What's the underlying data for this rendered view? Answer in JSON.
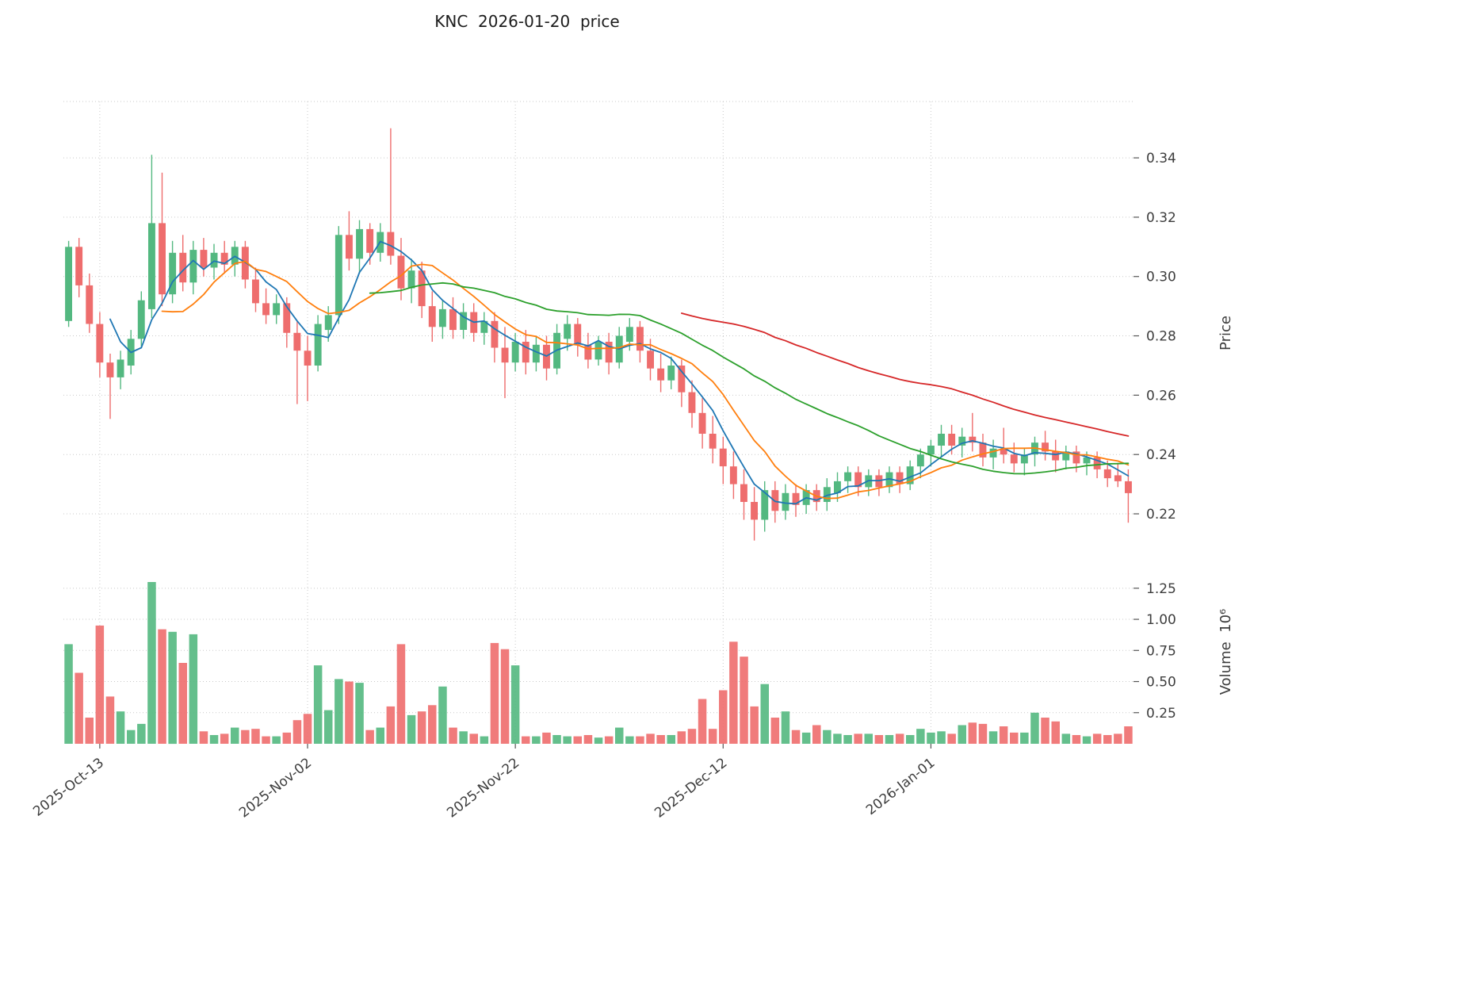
{
  "title": "KNC  2026-01-20  price",
  "price_axis": {
    "label": "Price",
    "ticks": [
      0.22,
      0.24,
      0.26,
      0.28,
      0.3,
      0.32,
      0.34
    ],
    "range": [
      0.2045,
      0.359
    ]
  },
  "volume_axis": {
    "label": "Volume  10⁶",
    "ticks": [
      0.25,
      0.5,
      0.75,
      1.0,
      1.25
    ],
    "range": [
      0,
      1.44
    ]
  },
  "x_axis": {
    "tick_labels": [
      "2025-Oct-13",
      "2025-Nov-02",
      "2025-Nov-22",
      "2025-Dec-12",
      "2026-Jan-01"
    ],
    "tick_indices": [
      3,
      23,
      43,
      63,
      83
    ]
  },
  "style": {
    "up_color": "#53b880",
    "down_color": "#ee6d6d",
    "grid_color": "#c9c9c9",
    "tick_color": "#555555",
    "text_color": "#3d3d3d",
    "background": "#ffffff"
  },
  "moving_averages": [
    {
      "name": "ma5",
      "period": 5,
      "color": "#1f77b4"
    },
    {
      "name": "ma10",
      "period": 10,
      "color": "#ff7f0e"
    },
    {
      "name": "ma30",
      "period": 30,
      "color": "#2ca02c"
    },
    {
      "name": "ma60",
      "period": 60,
      "color": "#d62728"
    }
  ],
  "chart_data": {
    "type": "candlestick",
    "symbol": "KNC",
    "as_of": "2026-01-20",
    "legend_position": "none",
    "grid": "dotted",
    "dates": [
      "2025-10-10",
      "2025-10-11",
      "2025-10-12",
      "2025-10-13",
      "2025-10-14",
      "2025-10-15",
      "2025-10-16",
      "2025-10-17",
      "2025-10-18",
      "2025-10-19",
      "2025-10-20",
      "2025-10-21",
      "2025-10-22",
      "2025-10-23",
      "2025-10-24",
      "2025-10-25",
      "2025-10-26",
      "2025-10-27",
      "2025-10-28",
      "2025-10-29",
      "2025-10-30",
      "2025-10-31",
      "2025-11-01",
      "2025-11-02",
      "2025-11-03",
      "2025-11-04",
      "2025-11-05",
      "2025-11-06",
      "2025-11-07",
      "2025-11-08",
      "2025-11-09",
      "2025-11-10",
      "2025-11-11",
      "2025-11-12",
      "2025-11-13",
      "2025-11-14",
      "2025-11-15",
      "2025-11-16",
      "2025-11-17",
      "2025-11-18",
      "2025-11-19",
      "2025-11-20",
      "2025-11-21",
      "2025-11-22",
      "2025-11-23",
      "2025-11-24",
      "2025-11-25",
      "2025-11-26",
      "2025-11-27",
      "2025-11-28",
      "2025-11-29",
      "2025-11-30",
      "2025-12-01",
      "2025-12-02",
      "2025-12-03",
      "2025-12-04",
      "2025-12-05",
      "2025-12-06",
      "2025-12-07",
      "2025-12-08",
      "2025-12-09",
      "2025-12-10",
      "2025-12-11",
      "2025-12-12",
      "2025-12-13",
      "2025-12-14",
      "2025-12-15",
      "2025-12-16",
      "2025-12-17",
      "2025-12-18",
      "2025-12-19",
      "2025-12-20",
      "2025-12-21",
      "2025-12-22",
      "2025-12-23",
      "2025-12-24",
      "2025-12-25",
      "2025-12-26",
      "2025-12-27",
      "2025-12-28",
      "2025-12-29",
      "2025-12-30",
      "2025-12-31",
      "2026-01-01",
      "2026-01-02",
      "2026-01-03",
      "2026-01-04",
      "2026-01-05",
      "2026-01-06",
      "2026-01-07",
      "2026-01-08",
      "2026-01-09",
      "2026-01-10",
      "2026-01-11",
      "2026-01-12",
      "2026-01-13",
      "2026-01-14",
      "2026-01-15",
      "2026-01-16",
      "2026-01-17",
      "2026-01-18",
      "2026-01-19",
      "2026-01-20"
    ],
    "open": [
      0.285,
      0.31,
      0.297,
      0.284,
      0.271,
      0.266,
      0.27,
      0.279,
      0.289,
      0.318,
      0.294,
      0.308,
      0.298,
      0.309,
      0.303,
      0.308,
      0.304,
      0.31,
      0.299,
      0.291,
      0.287,
      0.291,
      0.281,
      0.275,
      0.27,
      0.282,
      0.287,
      0.314,
      0.306,
      0.316,
      0.308,
      0.315,
      0.307,
      0.296,
      0.302,
      0.29,
      0.283,
      0.289,
      0.282,
      0.288,
      0.281,
      0.285,
      0.276,
      0.271,
      0.278,
      0.271,
      0.277,
      0.269,
      0.279,
      0.284,
      0.277,
      0.272,
      0.278,
      0.271,
      0.278,
      0.283,
      0.275,
      0.269,
      0.265,
      0.27,
      0.261,
      0.254,
      0.247,
      0.242,
      0.236,
      0.23,
      0.224,
      0.218,
      0.228,
      0.221,
      0.227,
      0.223,
      0.228,
      0.224,
      0.227,
      0.231,
      0.234,
      0.229,
      0.233,
      0.229,
      0.234,
      0.23,
      0.236,
      0.24,
      0.243,
      0.247,
      0.243,
      0.246,
      0.244,
      0.239,
      0.242,
      0.24,
      0.237,
      0.24,
      0.244,
      0.241,
      0.238,
      0.241,
      0.237,
      0.239,
      0.235,
      0.233,
      0.231
    ],
    "high": [
      0.312,
      0.313,
      0.301,
      0.288,
      0.274,
      0.275,
      0.282,
      0.295,
      0.341,
      0.335,
      0.312,
      0.314,
      0.312,
      0.313,
      0.311,
      0.312,
      0.312,
      0.312,
      0.303,
      0.296,
      0.294,
      0.293,
      0.285,
      0.28,
      0.287,
      0.29,
      0.317,
      0.322,
      0.319,
      0.318,
      0.318,
      0.35,
      0.313,
      0.306,
      0.305,
      0.295,
      0.292,
      0.293,
      0.291,
      0.291,
      0.288,
      0.288,
      0.283,
      0.281,
      0.282,
      0.28,
      0.28,
      0.284,
      0.287,
      0.286,
      0.281,
      0.28,
      0.281,
      0.283,
      0.286,
      0.285,
      0.279,
      0.274,
      0.273,
      0.272,
      0.265,
      0.259,
      0.253,
      0.246,
      0.241,
      0.235,
      0.229,
      0.231,
      0.231,
      0.23,
      0.23,
      0.23,
      0.23,
      0.232,
      0.234,
      0.236,
      0.236,
      0.235,
      0.235,
      0.236,
      0.236,
      0.238,
      0.242,
      0.245,
      0.25,
      0.25,
      0.249,
      0.254,
      0.247,
      0.245,
      0.249,
      0.244,
      0.242,
      0.246,
      0.248,
      0.245,
      0.243,
      0.243,
      0.241,
      0.241,
      0.238,
      0.237,
      0.235
    ],
    "low": [
      0.283,
      0.293,
      0.281,
      0.266,
      0.252,
      0.262,
      0.267,
      0.276,
      0.286,
      0.29,
      0.291,
      0.295,
      0.294,
      0.3,
      0.299,
      0.301,
      0.3,
      0.296,
      0.288,
      0.284,
      0.284,
      0.276,
      0.257,
      0.258,
      0.268,
      0.278,
      0.284,
      0.302,
      0.301,
      0.304,
      0.305,
      0.304,
      0.292,
      0.291,
      0.286,
      0.278,
      0.279,
      0.279,
      0.279,
      0.278,
      0.277,
      0.271,
      0.259,
      0.268,
      0.267,
      0.268,
      0.265,
      0.267,
      0.275,
      0.273,
      0.269,
      0.27,
      0.267,
      0.269,
      0.275,
      0.271,
      0.265,
      0.261,
      0.262,
      0.256,
      0.249,
      0.242,
      0.237,
      0.23,
      0.225,
      0.218,
      0.211,
      0.214,
      0.217,
      0.218,
      0.219,
      0.22,
      0.221,
      0.221,
      0.224,
      0.227,
      0.226,
      0.226,
      0.226,
      0.227,
      0.227,
      0.228,
      0.232,
      0.236,
      0.239,
      0.24,
      0.239,
      0.241,
      0.236,
      0.235,
      0.237,
      0.234,
      0.233,
      0.236,
      0.238,
      0.234,
      0.235,
      0.234,
      0.233,
      0.232,
      0.229,
      0.229,
      0.217
    ],
    "close": [
      0.31,
      0.297,
      0.284,
      0.271,
      0.266,
      0.272,
      0.279,
      0.292,
      0.318,
      0.294,
      0.308,
      0.298,
      0.309,
      0.303,
      0.308,
      0.304,
      0.31,
      0.299,
      0.291,
      0.287,
      0.291,
      0.281,
      0.275,
      0.27,
      0.284,
      0.287,
      0.314,
      0.306,
      0.316,
      0.308,
      0.315,
      0.307,
      0.296,
      0.302,
      0.29,
      0.283,
      0.289,
      0.282,
      0.288,
      0.281,
      0.285,
      0.276,
      0.271,
      0.278,
      0.271,
      0.277,
      0.269,
      0.281,
      0.284,
      0.277,
      0.272,
      0.278,
      0.271,
      0.28,
      0.283,
      0.275,
      0.269,
      0.265,
      0.27,
      0.261,
      0.254,
      0.247,
      0.242,
      0.236,
      0.23,
      0.224,
      0.218,
      0.228,
      0.221,
      0.227,
      0.223,
      0.228,
      0.224,
      0.229,
      0.231,
      0.234,
      0.229,
      0.233,
      0.229,
      0.234,
      0.23,
      0.236,
      0.24,
      0.243,
      0.247,
      0.243,
      0.246,
      0.244,
      0.239,
      0.242,
      0.24,
      0.237,
      0.24,
      0.244,
      0.241,
      0.238,
      0.241,
      0.237,
      0.239,
      0.235,
      0.232,
      0.231,
      0.227
    ],
    "volume_millions": [
      0.8,
      0.57,
      0.21,
      0.95,
      0.38,
      0.26,
      0.11,
      0.16,
      1.3,
      0.92,
      0.9,
      0.65,
      0.88,
      0.1,
      0.07,
      0.08,
      0.13,
      0.11,
      0.12,
      0.06,
      0.06,
      0.09,
      0.19,
      0.24,
      0.63,
      0.27,
      0.52,
      0.5,
      0.49,
      0.11,
      0.13,
      0.3,
      0.8,
      0.23,
      0.26,
      0.31,
      0.46,
      0.13,
      0.1,
      0.08,
      0.06,
      0.81,
      0.76,
      0.63,
      0.06,
      0.06,
      0.09,
      0.07,
      0.06,
      0.06,
      0.07,
      0.05,
      0.06,
      0.13,
      0.06,
      0.06,
      0.08,
      0.07,
      0.07,
      0.1,
      0.12,
      0.36,
      0.12,
      0.43,
      0.82,
      0.7,
      0.3,
      0.48,
      0.21,
      0.26,
      0.11,
      0.09,
      0.15,
      0.11,
      0.08,
      0.07,
      0.08,
      0.08,
      0.07,
      0.07,
      0.08,
      0.07,
      0.12,
      0.09,
      0.1,
      0.08,
      0.15,
      0.17,
      0.16,
      0.1,
      0.14,
      0.09,
      0.09,
      0.25,
      0.21,
      0.18,
      0.08,
      0.07,
      0.06,
      0.08,
      0.07,
      0.08,
      0.14
    ]
  }
}
